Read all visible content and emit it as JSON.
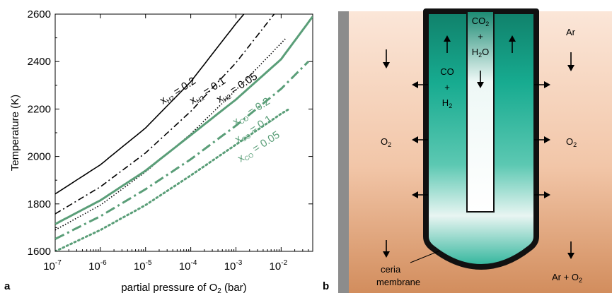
{
  "panel_labels": {
    "a": "a",
    "b": "b"
  },
  "colors": {
    "black_series": "#000000",
    "green_series": "#5a9e78",
    "membrane_wall": "#111111"
  },
  "chart_data": {
    "type": "line",
    "title": "",
    "xlabel": {
      "main": "partial pressure of O",
      "sub": "2",
      "unit": " (bar)"
    },
    "ylabel": "Temperature (K)",
    "x_scale": "log",
    "xlim": [
      1e-07,
      0.05
    ],
    "ylim": [
      1600,
      2600
    ],
    "grid": false,
    "x_ticks": [
      {
        "value": 1e-07,
        "base": "10",
        "exp": "-7"
      },
      {
        "value": 1e-06,
        "base": "10",
        "exp": "-6"
      },
      {
        "value": 1e-05,
        "base": "10",
        "exp": "-5"
      },
      {
        "value": 0.0001,
        "base": "10",
        "exp": "-4"
      },
      {
        "value": 0.001,
        "base": "10",
        "exp": "-3"
      },
      {
        "value": 0.01,
        "base": "10",
        "exp": "-2"
      }
    ],
    "y_ticks": [
      1600,
      1800,
      2000,
      2200,
      2400,
      2600
    ],
    "series": [
      {
        "name": "x_H2 = 0.2",
        "label_main": "x",
        "label_sub": "H2",
        "label_value": " = 0.2",
        "color": "#000000",
        "style": "solid",
        "x": [
          1e-07,
          1e-06,
          1e-05,
          0.0001,
          0.001,
          0.0015
        ],
        "y": [
          1842,
          1965,
          2120,
          2315,
          2560,
          2600
        ]
      },
      {
        "name": "x_H2 = 0.1",
        "label_main": "x",
        "label_sub": "H2",
        "label_value": " = 0.1",
        "color": "#000000",
        "style": "dashdot",
        "x": [
          1e-07,
          1e-06,
          1e-05,
          0.0001,
          0.001,
          0.007
        ],
        "y": [
          1758,
          1872,
          2015,
          2190,
          2395,
          2600
        ]
      },
      {
        "name": "x_H2 = 0.05",
        "label_main": "x",
        "label_sub": "H2",
        "label_value": " = 0.05",
        "color": "#000000",
        "style": "dotted",
        "x": [
          1e-07,
          1e-06,
          1e-05,
          0.0001,
          0.001,
          0.013
        ],
        "y": [
          1690,
          1795,
          1935,
          2095,
          2280,
          2500
        ]
      },
      {
        "name": "x_CO = 0.2",
        "label_main": "x",
        "label_sub": "CO",
        "label_value": " = 0.2",
        "color": "#5a9e78",
        "style": "solid",
        "x": [
          1e-07,
          1e-06,
          1e-05,
          0.0001,
          0.001,
          0.01,
          0.05
        ],
        "y": [
          1715,
          1815,
          1940,
          2090,
          2240,
          2410,
          2590
        ]
      },
      {
        "name": "x_CO = 0.1",
        "label_main": "x",
        "label_sub": "CO",
        "label_value": " = 0.1",
        "color": "#5a9e78",
        "style": "dashdot",
        "x": [
          1e-07,
          1e-06,
          1e-05,
          0.0001,
          0.001,
          0.01,
          0.04
        ],
        "y": [
          1652,
          1748,
          1862,
          1988,
          2130,
          2285,
          2400
        ]
      },
      {
        "name": "x_CO = 0.05",
        "label_main": "x",
        "label_sub": "CO",
        "label_value": " = 0.05",
        "color": "#5a9e78",
        "style": "dotted",
        "x": [
          1e-07,
          1e-06,
          1e-05,
          0.0001,
          0.001,
          0.01,
          0.015
        ],
        "y": [
          1600,
          1690,
          1795,
          1920,
          2050,
          2180,
          2200
        ]
      }
    ]
  },
  "diagram": {
    "inner_top_main": "CO",
    "inner_top_sub": "2",
    "inner_plus": "+",
    "inner_h2o_a": "H",
    "inner_h2o_sub": "2",
    "inner_h2o_b": "O",
    "annulus_co": "CO",
    "annulus_plus": "+",
    "annulus_h2_main": "H",
    "annulus_h2_sub": "2",
    "left_o2_main": "O",
    "left_o2_sub": "2",
    "right_o2_main": "O",
    "right_o2_sub": "2",
    "ar_label": "Ar",
    "ar_o2_label": "Ar + O",
    "ar_o2_sub": "2",
    "membrane_line1": "ceria",
    "membrane_line2": "membrane"
  }
}
